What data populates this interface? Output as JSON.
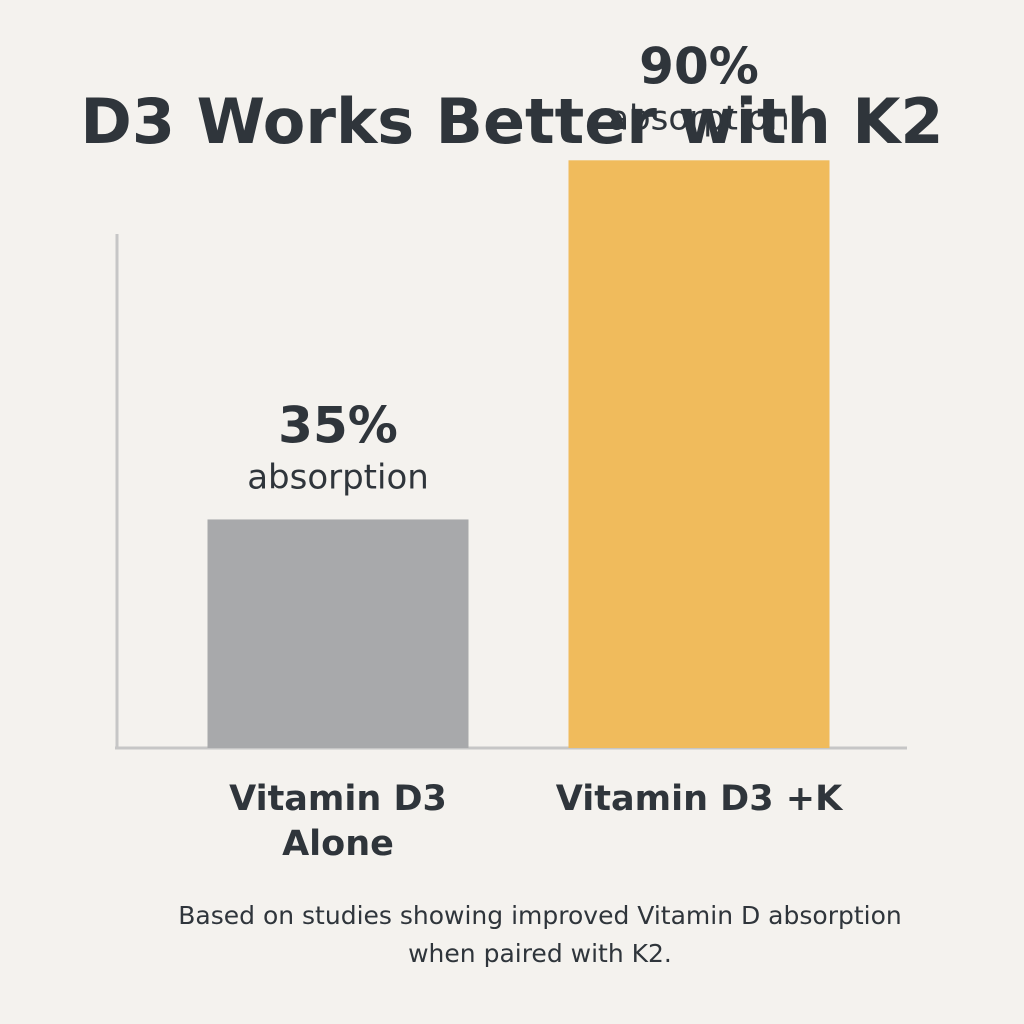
{
  "title": "D3 Works Better with K2",
  "footnote": {
    "line1": "Based on studies showing improved Vitamin D absorption",
    "line2": "when paired with K2."
  },
  "colors": {
    "background": "#f4f2ee",
    "text": "#2f353b",
    "axis": "#c6c6c6",
    "bar_alone": "#a8a9ab",
    "bar_with_k": "#f0bb5c"
  },
  "chart_data": {
    "type": "bar",
    "title": "D3 Works Better with K2",
    "categories": [
      [
        "Vitamin D3",
        "Alone"
      ],
      [
        "Vitamin D3 +K"
      ]
    ],
    "values": [
      35,
      90
    ],
    "value_labels": [
      "35%",
      "90%"
    ],
    "value_sublabel": "absorption",
    "unit": "%",
    "bar_colors": [
      "#a8a9ab",
      "#f0bb5c"
    ],
    "xlabel": "",
    "ylabel": "",
    "ylim": [
      0,
      100
    ],
    "grid": false,
    "legend": "none"
  }
}
